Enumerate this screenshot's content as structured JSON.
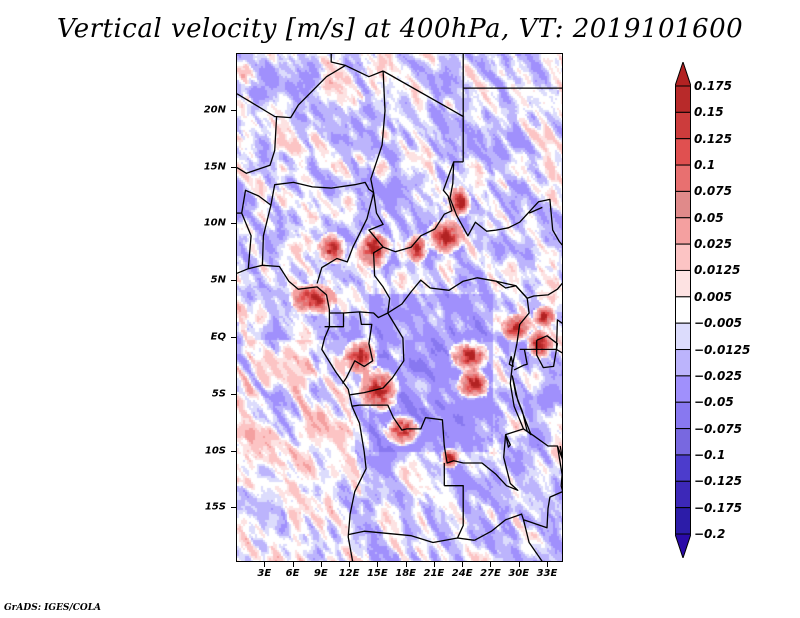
{
  "title": "Vertical velocity [m/s] at 400hPa, VT: 2019101600",
  "footer": "GrADS: IGES/COLA",
  "chart_data": {
    "type": "heatmap",
    "title": "Vertical velocity [m/s] at 400hPa, VT: 2019101600",
    "variable": "Vertical velocity",
    "units": "m/s",
    "level": "400hPa",
    "valid_time": "2019101600",
    "xlabel": "",
    "ylabel": "",
    "lon_range": [
      0,
      34.7
    ],
    "lat_range": [
      -19.8,
      25
    ],
    "lat_ticks": [
      {
        "value": 20,
        "label": "20N"
      },
      {
        "value": 15,
        "label": "15N"
      },
      {
        "value": 10,
        "label": "10N"
      },
      {
        "value": 5,
        "label": "5N"
      },
      {
        "value": 0,
        "label": "EQ"
      },
      {
        "value": -5,
        "label": "5S"
      },
      {
        "value": -10,
        "label": "10S"
      },
      {
        "value": -15,
        "label": "15S"
      }
    ],
    "lon_ticks": [
      {
        "value": 3,
        "label": "3E"
      },
      {
        "value": 6,
        "label": "6E"
      },
      {
        "value": 9,
        "label": "9E"
      },
      {
        "value": 12,
        "label": "12E"
      },
      {
        "value": 15,
        "label": "15E"
      },
      {
        "value": 18,
        "label": "18E"
      },
      {
        "value": 21,
        "label": "21E"
      },
      {
        "value": 24,
        "label": "24E"
      },
      {
        "value": 27,
        "label": "27E"
      },
      {
        "value": 30,
        "label": "30E"
      },
      {
        "value": 33,
        "label": "33E"
      }
    ],
    "colorbar": {
      "orientation": "vertical",
      "placement": "right",
      "extend": "both",
      "levels": [
        0.175,
        0.15,
        0.125,
        0.1,
        0.075,
        0.05,
        0.025,
        0.0125,
        0.005,
        -0.005,
        -0.0125,
        -0.025,
        -0.05,
        -0.075,
        -0.1,
        -0.125,
        -0.175,
        -0.2
      ],
      "labels": [
        "0.175",
        "0.15",
        "0.125",
        "0.1",
        "0.075",
        "0.05",
        "0.025",
        "0.0125",
        "0.005",
        "−0.005",
        "−0.0125",
        "−0.025",
        "−0.05",
        "−0.075",
        "−0.1",
        "−0.125",
        "−0.175",
        "−0.2"
      ],
      "colors": [
        "#b22222",
        "#b82a2a",
        "#cc3c3c",
        "#e05050",
        "#e87070",
        "#e08a8a",
        "#f4a0a0",
        "#fcc4c4",
        "#fde2e2",
        "#ffffff",
        "#dcdcfc",
        "#bcb4fc",
        "#a090fc",
        "#8878f0",
        "#7868e0",
        "#4c3ccc",
        "#3c28b8",
        "#2c1ca8",
        "#2a0aa8"
      ]
    },
    "notable_features": [
      "Strong upward motion (dark red) clusters over Cameroon/CAR near 6-10N, 12-24E",
      "Strong upward motion clusters over DR Congo near 2-8S, 14-26E",
      "Predominantly weak downward motion (blue) over central Congo basin and Sahara",
      "Weak upward (pink) bands over the South Atlantic Ocean"
    ]
  }
}
